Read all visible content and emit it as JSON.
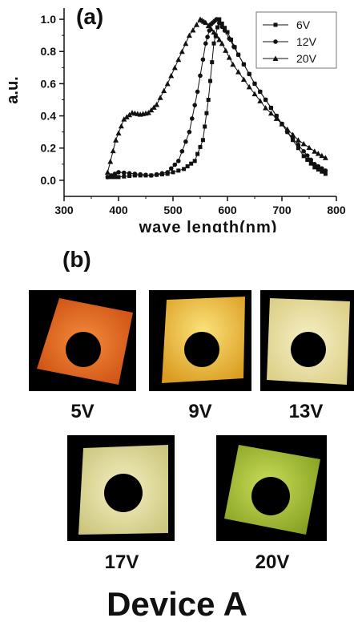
{
  "chart_data": {
    "type": "scatter",
    "panel_label": "(a)",
    "xlabel": "wave length(nm)",
    "ylabel": "a.u.",
    "xlim": [
      300,
      800
    ],
    "ylim": [
      -0.1,
      1.07
    ],
    "xticks": [
      "300",
      "400",
      "500",
      "600",
      "700",
      "800"
    ],
    "yticks": [
      "0.0",
      "0.2",
      "0.4",
      "0.6",
      "0.8",
      "1.0"
    ],
    "legend_position": "top-right",
    "series": [
      {
        "name": "6V",
        "marker": "square",
        "x": [
          380,
          400,
          430,
          460,
          490,
          520,
          540,
          555,
          565,
          575,
          585,
          600,
          620,
          650,
          680,
          710,
          740,
          760,
          780
        ],
        "y": [
          0.02,
          0.02,
          0.03,
          0.03,
          0.04,
          0.07,
          0.12,
          0.25,
          0.5,
          0.85,
          1.0,
          0.92,
          0.78,
          0.6,
          0.45,
          0.3,
          0.15,
          0.08,
          0.04
        ]
      },
      {
        "name": "12V",
        "marker": "circle",
        "x": [
          380,
          400,
          430,
          460,
          490,
          510,
          530,
          545,
          560,
          570,
          580,
          595,
          620,
          650,
          680,
          710,
          740,
          760,
          780
        ],
        "y": [
          0.02,
          0.05,
          0.04,
          0.03,
          0.05,
          0.12,
          0.3,
          0.55,
          0.85,
          0.97,
          1.0,
          0.93,
          0.78,
          0.6,
          0.45,
          0.3,
          0.18,
          0.1,
          0.06
        ]
      },
      {
        "name": "20V",
        "marker": "triangle",
        "x": [
          380,
          395,
          410,
          425,
          440,
          455,
          470,
          490,
          510,
          530,
          550,
          560,
          575,
          590,
          610,
          640,
          670,
          700,
          730,
          760,
          780
        ],
        "y": [
          0.05,
          0.25,
          0.38,
          0.42,
          0.41,
          0.42,
          0.47,
          0.6,
          0.75,
          0.9,
          1.0,
          0.98,
          0.92,
          0.85,
          0.72,
          0.58,
          0.45,
          0.35,
          0.25,
          0.18,
          0.14
        ]
      }
    ]
  },
  "figure_b": {
    "panel_label": "(b)",
    "photos": [
      {
        "caption": "5V",
        "glow": "#e8651a",
        "hole_offset": 0.5
      },
      {
        "caption": "9V",
        "glow": "#f2c23a",
        "hole_offset": 0.52
      },
      {
        "caption": "13V",
        "glow": "#efe2a6",
        "hole_offset": 0.5
      },
      {
        "caption": "17V",
        "glow": "#e6e3a2",
        "hole_offset": 0.5
      },
      {
        "caption": "20V",
        "glow": "#a9c83a",
        "hole_offset": 0.5
      }
    ],
    "device_label": "Device A"
  }
}
